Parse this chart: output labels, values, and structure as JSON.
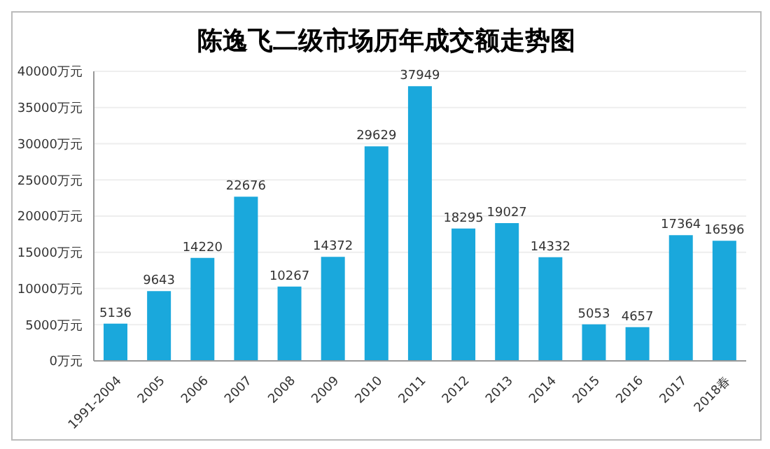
{
  "chart_data": {
    "type": "bar",
    "title": "陈逸飞二级市场历年成交额走势图",
    "categories": [
      "1991-2004",
      "2005",
      "2006",
      "2007",
      "2008",
      "2009",
      "2010",
      "2011",
      "2012",
      "2013",
      "2014",
      "2015",
      "2016",
      "2017",
      "2018春"
    ],
    "values": [
      5136,
      9643,
      14220,
      22676,
      10267,
      14372,
      29629,
      37949,
      18295,
      19027,
      14332,
      5053,
      4657,
      17364,
      16596
    ],
    "color": "#1aa8dc",
    "ylim": [
      0,
      40000
    ],
    "yticks": [
      {
        "value": 0,
        "label": "0万元"
      },
      {
        "value": 5000,
        "label": "5000万元"
      },
      {
        "value": 10000,
        "label": "10000万元"
      },
      {
        "value": 15000,
        "label": "15000万元"
      },
      {
        "value": 20000,
        "label": "20000万元"
      },
      {
        "value": 25000,
        "label": "25000万元"
      },
      {
        "value": 30000,
        "label": "30000万元"
      },
      {
        "value": 35000,
        "label": "35000万元"
      },
      {
        "value": 40000,
        "label": "40000万元"
      }
    ],
    "grid": "y",
    "data_labels": true
  }
}
